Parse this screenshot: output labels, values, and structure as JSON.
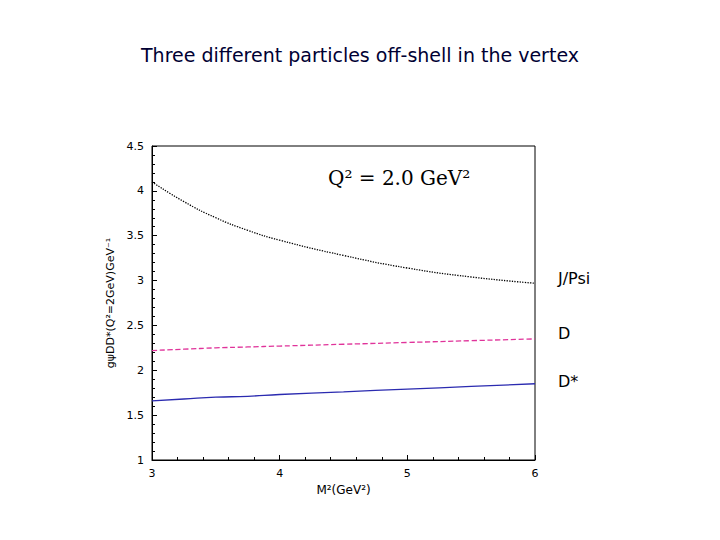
{
  "chart_data": {
    "type": "line",
    "title": "Three different particles off-shell in the vertex",
    "annotation": "Q² = 2.0 GeV²",
    "x_label": "M²(GeV²)",
    "y_label": "gψDD*(Q²=2GeV)GeV⁻¹",
    "x": [
      3,
      3.25,
      3.5,
      3.75,
      4,
      4.5,
      5,
      5.5,
      6
    ],
    "series": [
      {
        "name": "J/Psi",
        "color": "#000000",
        "line_style": "dotted",
        "values": [
          4.1,
          3.88,
          3.7,
          3.56,
          3.45,
          3.28,
          3.14,
          3.04,
          2.97
        ]
      },
      {
        "name": "D",
        "color": "#e0339a",
        "line_style": "dashed",
        "values": [
          2.22,
          2.235,
          2.25,
          2.26,
          2.27,
          2.29,
          2.31,
          2.33,
          2.35
        ]
      },
      {
        "name": "D*",
        "color": "#2b2bb0",
        "line_style": "solid",
        "values": [
          1.66,
          1.68,
          1.7,
          1.71,
          1.73,
          1.76,
          1.79,
          1.82,
          1.85
        ]
      }
    ],
    "xlim": [
      3,
      6
    ],
    "xticks": [
      3,
      4,
      5,
      6
    ],
    "ylim": [
      1,
      4.5
    ],
    "yticks": [
      1,
      1.5,
      2,
      2.5,
      3,
      3.5,
      4,
      4.5
    ],
    "grid": false
  }
}
